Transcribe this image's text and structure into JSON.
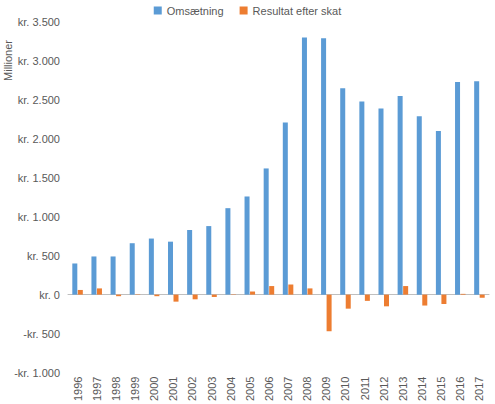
{
  "chart_data": {
    "type": "bar",
    "y_label": "Millioner",
    "categories": [
      "1996",
      "1997",
      "1998",
      "1999",
      "2000",
      "2001",
      "2002",
      "2003",
      "2004",
      "2005",
      "2006",
      "2007",
      "2008",
      "2009",
      "2010",
      "2011",
      "2012",
      "2013",
      "2014",
      "2015",
      "2016",
      "2017"
    ],
    "series": [
      {
        "name": "Omsætning",
        "color": "#5b9bd5",
        "values": [
          400,
          490,
          490,
          660,
          720,
          680,
          830,
          880,
          1110,
          1260,
          1620,
          2210,
          3300,
          3290,
          2650,
          2480,
          2390,
          2550,
          2290,
          2100,
          2730,
          2740
        ]
      },
      {
        "name": "Resultat efter skat",
        "color": "#ed7d31",
        "values": [
          60,
          80,
          -20,
          5,
          -20,
          -90,
          -60,
          -30,
          5,
          40,
          110,
          130,
          80,
          -470,
          -180,
          -80,
          -150,
          110,
          -140,
          -120,
          10,
          -40
        ]
      }
    ],
    "ylim": [
      -1000,
      3500
    ],
    "yticks": [
      {
        "value": -1000,
        "label": "-kr. 1.000"
      },
      {
        "value": -500,
        "label": "-kr. 500"
      },
      {
        "value": 0,
        "label": "kr. 0"
      },
      {
        "value": 500,
        "label": "kr. 500"
      },
      {
        "value": 1000,
        "label": "kr. 1.000"
      },
      {
        "value": 1500,
        "label": "kr. 1.500"
      },
      {
        "value": 2000,
        "label": "kr. 2.000"
      },
      {
        "value": 2500,
        "label": "kr. 2.500"
      },
      {
        "value": 3000,
        "label": "kr. 3.000"
      },
      {
        "value": 3500,
        "label": "kr. 3.500"
      }
    ],
    "grid": false,
    "legend": "top"
  }
}
